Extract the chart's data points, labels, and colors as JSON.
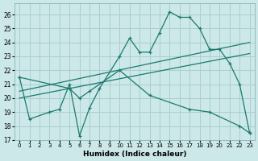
{
  "xlabel": "Humidex (Indice chaleur)",
  "bg_color": "#cce8e8",
  "line_color": "#1a7a6e",
  "grid_color": "#aacece",
  "xlim": [
    -0.5,
    23.5
  ],
  "ylim": [
    17,
    26.8
  ],
  "yticks": [
    17,
    18,
    19,
    20,
    21,
    22,
    23,
    24,
    25,
    26
  ],
  "xticks": [
    0,
    1,
    2,
    3,
    4,
    5,
    6,
    7,
    8,
    9,
    10,
    11,
    12,
    13,
    14,
    15,
    16,
    17,
    18,
    19,
    20,
    21,
    22,
    23
  ],
  "curve_x": [
    0,
    1,
    3,
    4,
    5,
    6,
    7,
    8,
    10,
    11,
    12,
    13,
    14,
    15,
    16,
    17,
    18,
    19,
    20,
    21,
    22,
    23
  ],
  "curve_y": [
    21.5,
    18.5,
    19.0,
    19.2,
    21.0,
    17.3,
    19.3,
    20.7,
    23.0,
    24.3,
    23.3,
    23.3,
    24.7,
    26.2,
    25.8,
    25.8,
    25.0,
    23.5,
    23.5,
    22.5,
    21.0,
    17.5
  ],
  "trend1_x": [
    0,
    23
  ],
  "trend1_y": [
    20.5,
    24.0
  ],
  "trend2_x": [
    0,
    23
  ],
  "trend2_y": [
    20.0,
    23.2
  ],
  "desc_x": [
    0,
    5,
    6,
    7,
    10,
    13,
    17,
    19,
    22,
    23
  ],
  "desc_y": [
    21.5,
    20.7,
    20.0,
    20.5,
    22.0,
    20.2,
    19.2,
    19.0,
    18.0,
    17.5
  ]
}
